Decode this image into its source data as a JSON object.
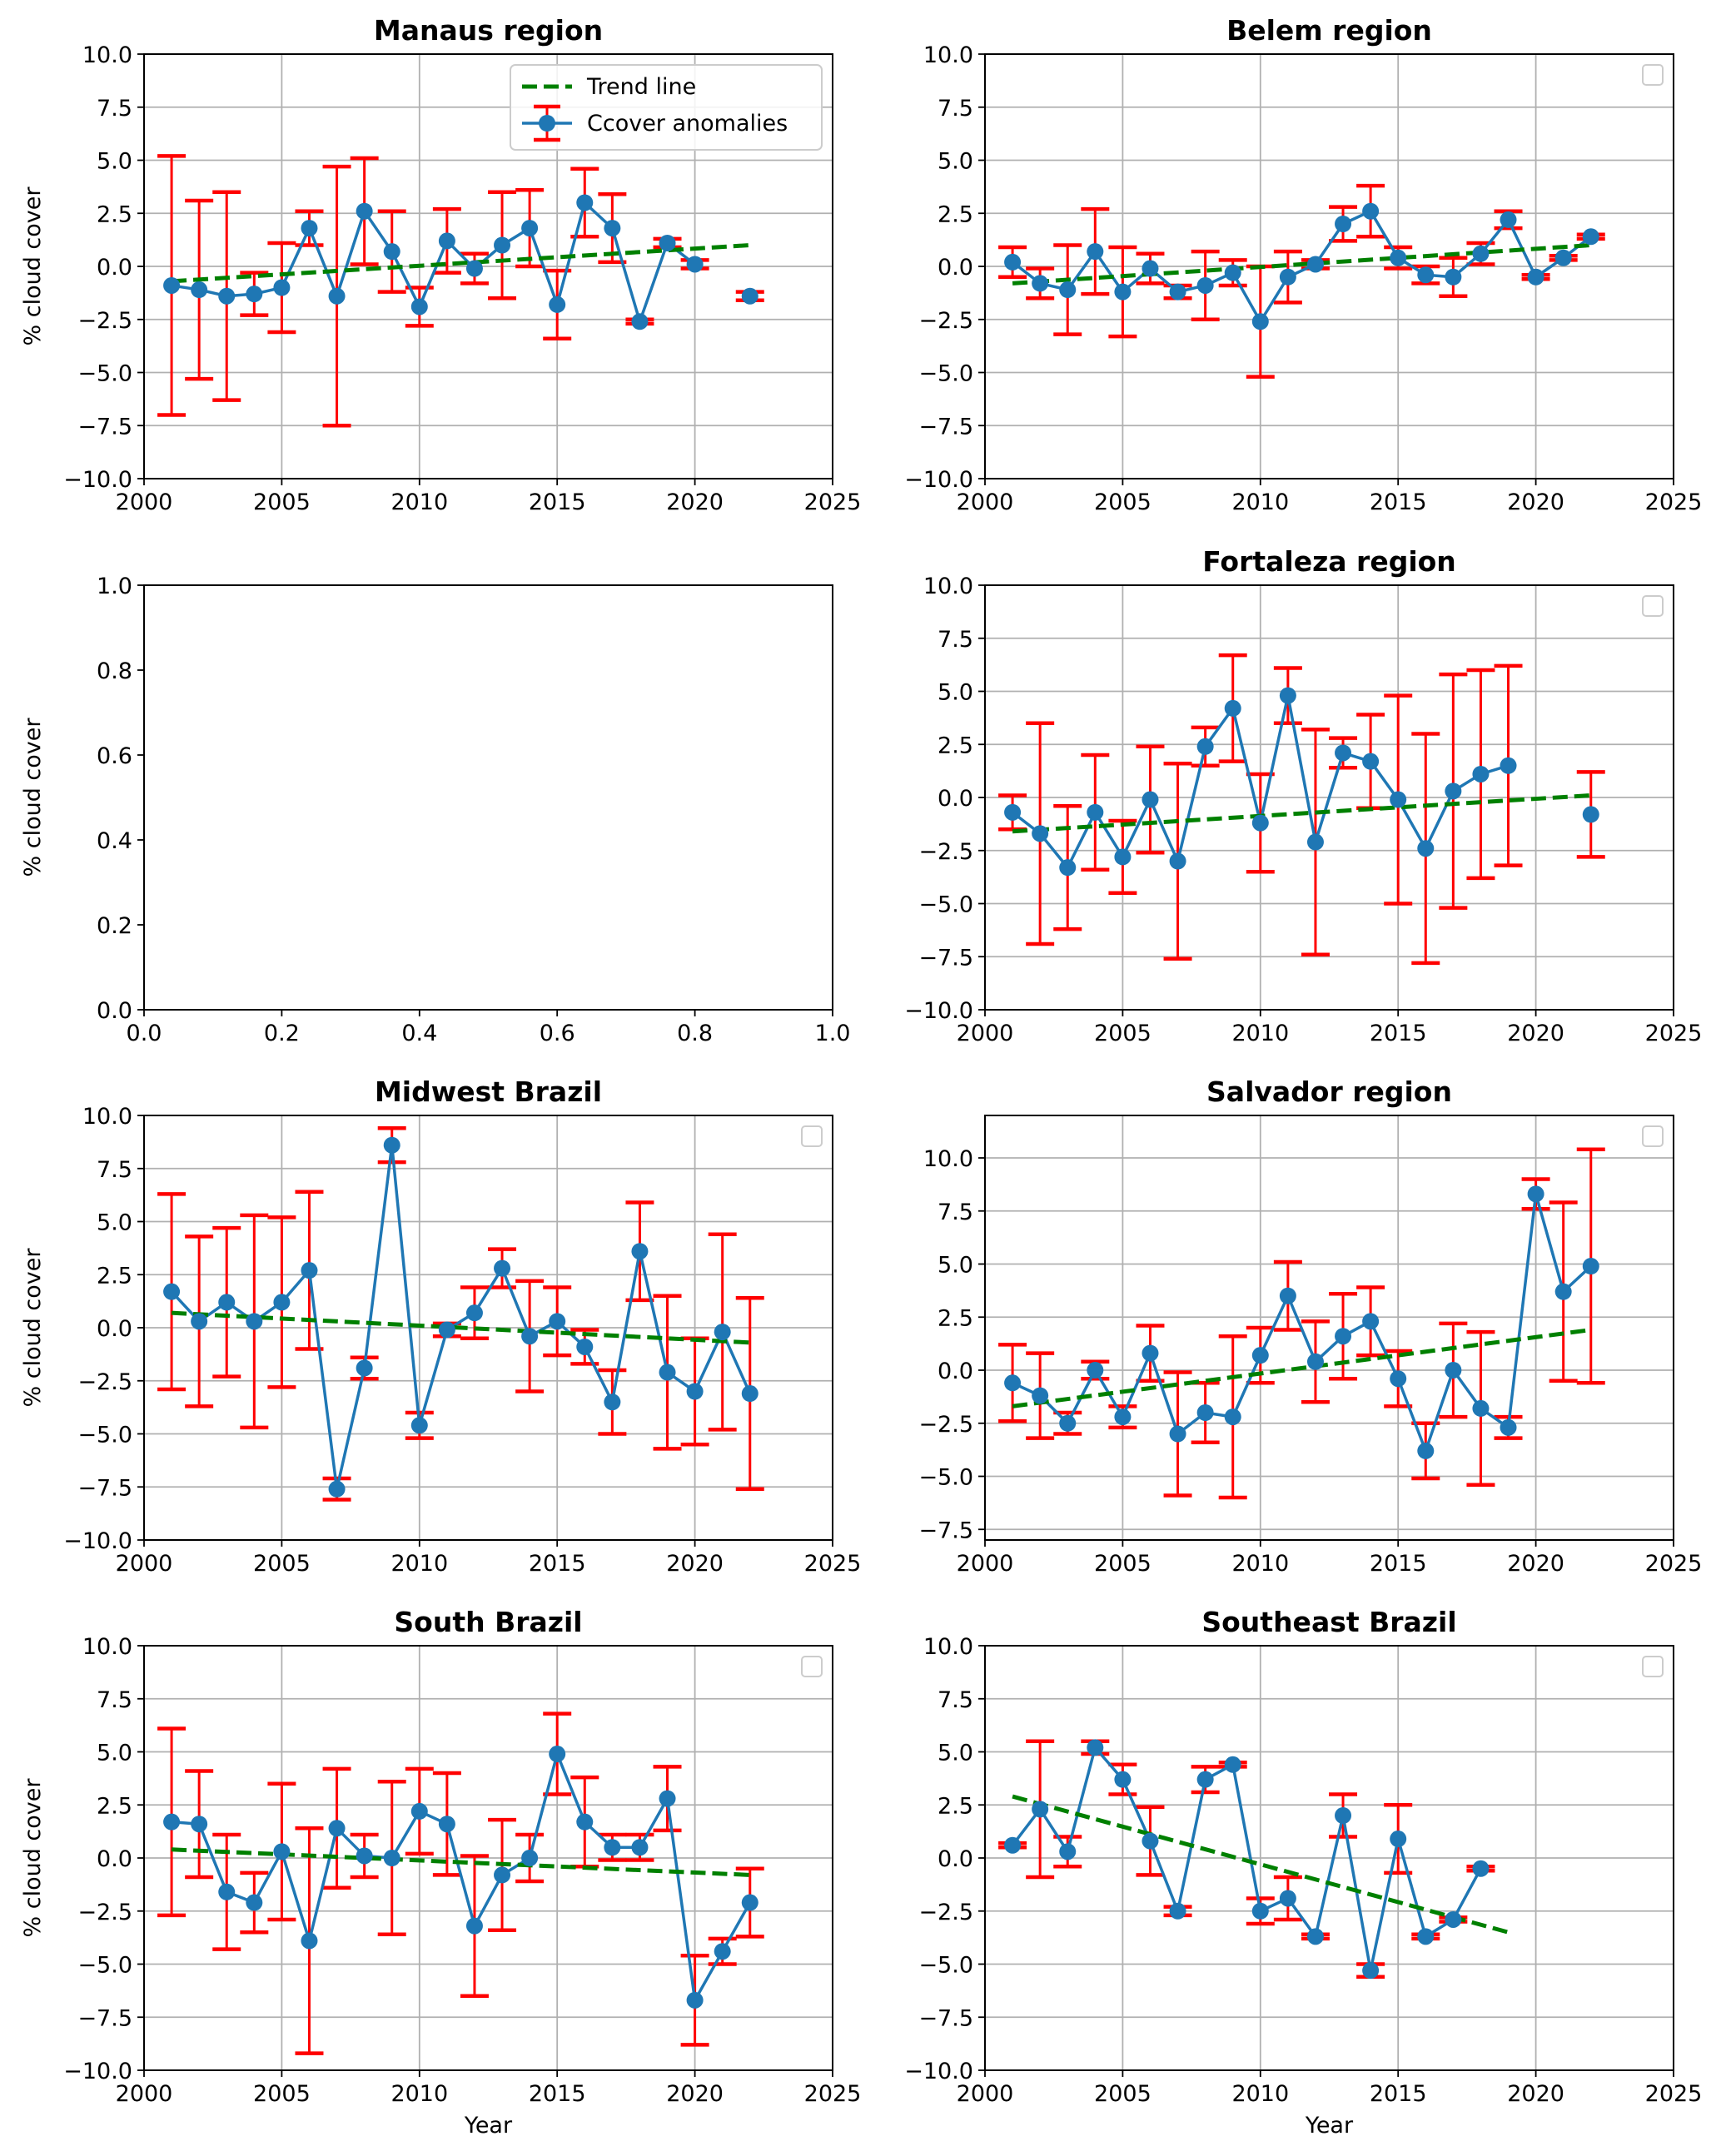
{
  "colors": {
    "trend": "#008000",
    "anomaly": "#1f77b4",
    "error": "#ff0000",
    "grid": "#b0b0b0"
  },
  "chart_data": [
    {
      "type": "line",
      "title": "Manaus region",
      "xlabel": "",
      "ylabel": "% cloud cover",
      "xlim": [
        2000,
        2025
      ],
      "ylim": [
        -10,
        10
      ],
      "xticks": [
        2000,
        2005,
        2010,
        2015,
        2020,
        2025
      ],
      "yticks": [
        -10,
        -7.5,
        -5,
        -2.5,
        0,
        2.5,
        5,
        7.5,
        10
      ],
      "grid": true,
      "legend": {
        "placement": "top-right",
        "entries": [
          "Trend line",
          "Ccover anomalies"
        ],
        "empty": false
      },
      "trend": {
        "x": [
          2001,
          2022
        ],
        "y": [
          -0.7,
          1.0
        ]
      },
      "series": [
        {
          "name": "Ccover anomalies",
          "x": [
            2001,
            2002,
            2003,
            2004,
            2005,
            2006,
            2007,
            2008,
            2009,
            2010,
            2011,
            2012,
            2013,
            2014,
            2015,
            2016,
            2017,
            2018,
            2019,
            2020
          ],
          "y": [
            -0.9,
            -1.1,
            -1.4,
            -1.3,
            -1.0,
            1.8,
            -1.4,
            2.6,
            0.7,
            -1.9,
            1.2,
            -0.1,
            1.0,
            1.8,
            -1.8,
            3.0,
            1.8,
            -2.6,
            1.1,
            0.1
          ],
          "err": [
            6.1,
            4.2,
            4.9,
            1.0,
            2.1,
            0.8,
            6.1,
            2.5,
            1.9,
            0.9,
            1.5,
            0.7,
            2.5,
            1.8,
            1.6,
            1.6,
            1.6,
            0.1,
            0.2,
            0.2
          ]
        },
        {
          "name": "",
          "x": [
            2022
          ],
          "y": [
            -1.4
          ],
          "err": [
            0.2
          ]
        }
      ]
    },
    {
      "type": "line",
      "title": "Belem region",
      "xlabel": "",
      "ylabel": "",
      "xlim": [
        2000,
        2025
      ],
      "ylim": [
        -10,
        10
      ],
      "xticks": [
        2000,
        2005,
        2010,
        2015,
        2020,
        2025
      ],
      "yticks": [
        -10,
        -7.5,
        -5,
        -2.5,
        0,
        2.5,
        5,
        7.5,
        10
      ],
      "grid": true,
      "legend": {
        "placement": "top-right",
        "entries": [],
        "empty": true
      },
      "trend": {
        "x": [
          2001,
          2022
        ],
        "y": [
          -0.8,
          1.0
        ]
      },
      "series": [
        {
          "name": "",
          "x": [
            2001,
            2002,
            2003,
            2004,
            2005,
            2006,
            2007,
            2008,
            2009,
            2010,
            2011,
            2012,
            2013,
            2014,
            2015,
            2016,
            2017,
            2018,
            2019,
            2020,
            2021,
            2022
          ],
          "y": [
            0.2,
            -0.8,
            -1.1,
            0.7,
            -1.2,
            -0.1,
            -1.2,
            -0.9,
            -0.3,
            -2.6,
            -0.5,
            0.1,
            2.0,
            2.6,
            0.4,
            -0.4,
            -0.5,
            0.6,
            2.2,
            -0.5,
            0.4,
            1.4
          ],
          "err": [
            0.7,
            0.7,
            2.1,
            2.0,
            2.1,
            0.7,
            0.3,
            1.6,
            0.6,
            2.6,
            1.2,
            0.2,
            0.8,
            1.2,
            0.5,
            0.4,
            0.9,
            0.5,
            0.4,
            0.1,
            0.1,
            0.1
          ]
        }
      ]
    },
    {
      "type": "line",
      "title": "",
      "xlabel": "",
      "ylabel": "% cloud cover",
      "xlim": [
        0,
        1
      ],
      "ylim": [
        0,
        1
      ],
      "xticks": [
        0.0,
        0.2,
        0.4,
        0.6,
        0.8,
        1.0
      ],
      "yticks": [
        0.0,
        0.2,
        0.4,
        0.6,
        0.8,
        1.0
      ],
      "grid": false,
      "legend": {
        "placement": "none",
        "entries": [],
        "empty": false
      },
      "trend": null,
      "series": []
    },
    {
      "type": "line",
      "title": "Fortaleza region",
      "xlabel": "",
      "ylabel": "",
      "xlim": [
        2000,
        2025
      ],
      "ylim": [
        -10,
        10
      ],
      "xticks": [
        2000,
        2005,
        2010,
        2015,
        2020,
        2025
      ],
      "yticks": [
        -10,
        -7.5,
        -5,
        -2.5,
        0,
        2.5,
        5,
        7.5,
        10
      ],
      "grid": true,
      "legend": {
        "placement": "top-right",
        "entries": [],
        "empty": true
      },
      "trend": {
        "x": [
          2001,
          2022
        ],
        "y": [
          -1.6,
          0.1
        ]
      },
      "series": [
        {
          "name": "",
          "x": [
            2001,
            2002,
            2003,
            2004,
            2005,
            2006,
            2007,
            2008,
            2009,
            2010,
            2011,
            2012,
            2013,
            2014,
            2015,
            2016,
            2017,
            2018,
            2019
          ],
          "y": [
            -0.7,
            -1.7,
            -3.3,
            -0.7,
            -2.8,
            -0.1,
            -3.0,
            2.4,
            4.2,
            -1.2,
            4.8,
            -2.1,
            2.1,
            1.7,
            -0.1,
            -2.4,
            0.3,
            1.1,
            1.5
          ],
          "err": [
            0.8,
            5.2,
            2.9,
            2.7,
            1.7,
            2.5,
            4.6,
            0.9,
            2.5,
            2.3,
            1.3,
            5.3,
            0.7,
            2.2,
            4.9,
            5.4,
            5.5,
            4.9,
            4.7
          ]
        },
        {
          "name": "",
          "x": [
            2022
          ],
          "y": [
            -0.8
          ],
          "err": [
            2.0
          ]
        }
      ]
    },
    {
      "type": "line",
      "title": "Midwest Brazil",
      "xlabel": "",
      "ylabel": "% cloud cover",
      "xlim": [
        2000,
        2025
      ],
      "ylim": [
        -10,
        10
      ],
      "xticks": [
        2000,
        2005,
        2010,
        2015,
        2020,
        2025
      ],
      "yticks": [
        -10,
        -7.5,
        -5,
        -2.5,
        0,
        2.5,
        5,
        7.5,
        10
      ],
      "grid": true,
      "legend": {
        "placement": "top-right",
        "entries": [],
        "empty": true
      },
      "trend": {
        "x": [
          2001,
          2022
        ],
        "y": [
          0.7,
          -0.7
        ]
      },
      "series": [
        {
          "name": "",
          "x": [
            2001,
            2002,
            2003,
            2004,
            2005,
            2006,
            2007,
            2008,
            2009,
            2010,
            2011,
            2012,
            2013,
            2014,
            2015,
            2016,
            2017,
            2018,
            2019,
            2020,
            2021,
            2022
          ],
          "y": [
            1.7,
            0.3,
            1.2,
            0.3,
            1.2,
            2.7,
            -7.6,
            -1.9,
            8.6,
            -4.6,
            -0.1,
            0.7,
            2.8,
            -0.4,
            0.3,
            -0.9,
            -3.5,
            3.6,
            -2.1,
            -3.0,
            -0.2,
            -3.1
          ],
          "err": [
            4.6,
            4.0,
            3.5,
            5.0,
            4.0,
            3.7,
            0.5,
            0.5,
            0.8,
            0.6,
            0.3,
            1.2,
            0.9,
            2.6,
            1.6,
            0.8,
            1.5,
            2.3,
            3.6,
            2.5,
            4.6,
            4.5
          ]
        }
      ]
    },
    {
      "type": "line",
      "title": "Salvador region",
      "xlabel": "",
      "ylabel": "",
      "xlim": [
        2000,
        2025
      ],
      "ylim": [
        -8,
        12
      ],
      "xticks": [
        2000,
        2005,
        2010,
        2015,
        2020,
        2025
      ],
      "yticks": [
        -7.5,
        -5,
        -2.5,
        0,
        2.5,
        5,
        7.5,
        10
      ],
      "grid": true,
      "legend": {
        "placement": "top-right",
        "entries": [],
        "empty": true
      },
      "trend": {
        "x": [
          2001,
          2022
        ],
        "y": [
          -1.7,
          1.9
        ]
      },
      "series": [
        {
          "name": "",
          "x": [
            2001,
            2002,
            2003,
            2004,
            2005,
            2006,
            2007,
            2008,
            2009,
            2010,
            2011,
            2012,
            2013,
            2014,
            2015,
            2016,
            2017,
            2018,
            2019,
            2020,
            2021,
            2022
          ],
          "y": [
            -0.6,
            -1.2,
            -2.5,
            0.0,
            -2.2,
            0.8,
            -3.0,
            -2.0,
            -2.2,
            0.7,
            3.5,
            0.4,
            1.6,
            2.3,
            -0.4,
            -3.8,
            0.0,
            -1.8,
            -2.7,
            8.3,
            3.7,
            4.9
          ],
          "err": [
            1.8,
            2.0,
            0.5,
            0.4,
            0.5,
            1.3,
            2.9,
            1.4,
            3.8,
            1.3,
            1.6,
            1.9,
            2.0,
            1.6,
            1.3,
            1.3,
            2.2,
            3.6,
            0.5,
            0.7,
            4.2,
            5.5
          ]
        }
      ]
    },
    {
      "type": "line",
      "title": "South Brazil",
      "xlabel": "Year",
      "ylabel": "% cloud cover",
      "xlim": [
        2000,
        2025
      ],
      "ylim": [
        -10,
        10
      ],
      "xticks": [
        2000,
        2005,
        2010,
        2015,
        2020,
        2025
      ],
      "yticks": [
        -10,
        -7.5,
        -5,
        -2.5,
        0,
        2.5,
        5,
        7.5,
        10
      ],
      "grid": true,
      "legend": {
        "placement": "top-right",
        "entries": [],
        "empty": true
      },
      "trend": {
        "x": [
          2001,
          2022
        ],
        "y": [
          0.4,
          -0.8
        ]
      },
      "series": [
        {
          "name": "",
          "x": [
            2001,
            2002,
            2003,
            2004,
            2005,
            2006,
            2007,
            2008,
            2009,
            2010,
            2011,
            2012,
            2013,
            2014,
            2015,
            2016,
            2017,
            2018,
            2019,
            2020,
            2021,
            2022
          ],
          "y": [
            1.7,
            1.6,
            -1.6,
            -2.1,
            0.3,
            -3.9,
            1.4,
            0.1,
            0.0,
            2.2,
            1.6,
            -3.2,
            -0.8,
            0.0,
            4.9,
            1.7,
            0.5,
            0.5,
            2.8,
            -6.7,
            -4.4,
            -2.1
          ],
          "err": [
            4.4,
            2.5,
            2.7,
            1.4,
            3.2,
            5.3,
            2.8,
            1.0,
            3.6,
            2.0,
            2.4,
            3.3,
            2.6,
            1.1,
            1.9,
            2.1,
            0.6,
            0.6,
            1.5,
            2.1,
            0.6,
            1.6
          ]
        }
      ]
    },
    {
      "type": "line",
      "title": "Southeast Brazil",
      "xlabel": "Year",
      "ylabel": "",
      "xlim": [
        2000,
        2025
      ],
      "ylim": [
        -10,
        10
      ],
      "xticks": [
        2000,
        2005,
        2010,
        2015,
        2020,
        2025
      ],
      "yticks": [
        -10,
        -7.5,
        -5,
        -2.5,
        0,
        2.5,
        5,
        7.5,
        10
      ],
      "grid": true,
      "legend": {
        "placement": "top-right",
        "entries": [],
        "empty": true
      },
      "trend": {
        "x": [
          2001,
          2019
        ],
        "y": [
          2.9,
          -3.5
        ]
      },
      "series": [
        {
          "name": "",
          "x": [
            2001,
            2002,
            2003,
            2004,
            2005,
            2006,
            2007,
            2008,
            2009,
            2010,
            2011,
            2012,
            2013,
            2014,
            2015,
            2016,
            2017,
            2018
          ],
          "y": [
            0.6,
            2.3,
            0.3,
            5.2,
            3.7,
            0.8,
            -2.5,
            3.7,
            4.4,
            -2.5,
            -1.9,
            -3.7,
            2.0,
            -5.3,
            0.9,
            -3.7,
            -2.9,
            -0.5
          ],
          "err": [
            0.1,
            3.2,
            0.7,
            0.3,
            0.7,
            1.6,
            0.2,
            0.6,
            0.1,
            0.6,
            1.0,
            0.1,
            1.0,
            0.3,
            1.6,
            0.1,
            0.1,
            0.1
          ]
        }
      ]
    }
  ]
}
